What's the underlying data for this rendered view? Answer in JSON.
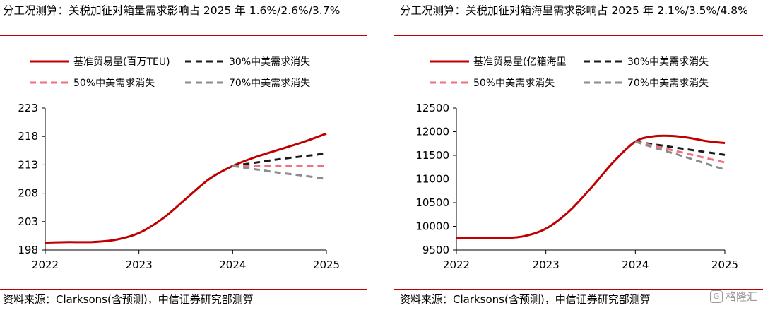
{
  "watermark": {
    "text": "格隆汇"
  },
  "colors": {
    "rule": "#c00000",
    "base": "#c00000",
    "s30": "#1a1a1a",
    "s50": "#f0707e",
    "s70": "#8c8c8c"
  },
  "panels": [
    {
      "title": "分工况测算：关税加征对箱量需求影响占 2025 年 1.6%/2.6%/3.7%",
      "source": "资料来源：Clarksons(含预测)，中信证券研究部测算"
    },
    {
      "title": "分工况测算：关税加征对箱海里需求影响占 2025 年 2.1%/3.5%/4.8%",
      "source": "资料来源：Clarksons(含预测)，中信证券研究部测算"
    }
  ],
  "chart_data": [
    {
      "type": "line",
      "x_ticks": [
        "2022",
        "2023",
        "2024",
        "2025"
      ],
      "y_ticks": [
        "198",
        "203",
        "208",
        "213",
        "218",
        "223"
      ],
      "xlim": [
        2022,
        2025
      ],
      "ylim": [
        198,
        223
      ],
      "grid": false,
      "legend_position": "top",
      "series": [
        {
          "name": "基准贸易量(百万TEU)",
          "style": "solid",
          "color": "#c00000",
          "points": [
            [
              2022,
              199.3
            ],
            [
              2022.25,
              199.4
            ],
            [
              2022.5,
              199.4
            ],
            [
              2022.75,
              199.8
            ],
            [
              2023,
              201.0
            ],
            [
              2023.25,
              203.5
            ],
            [
              2023.5,
              207.0
            ],
            [
              2023.75,
              210.5
            ],
            [
              2024,
              212.8
            ],
            [
              2024.25,
              214.4
            ],
            [
              2024.5,
              215.7
            ],
            [
              2024.75,
              217.0
            ],
            [
              2025,
              218.5
            ]
          ]
        },
        {
          "name": "30%中美需求消失",
          "style": "dashed",
          "color": "#1a1a1a",
          "points": [
            [
              2024,
              212.8
            ],
            [
              2024.25,
              213.4
            ],
            [
              2024.5,
              214.0
            ],
            [
              2024.75,
              214.5
            ],
            [
              2025,
              215.0
            ]
          ]
        },
        {
          "name": "50%中美需求消失",
          "style": "dashed",
          "color": "#f0707e",
          "points": [
            [
              2024,
              212.8
            ],
            [
              2024.5,
              212.8
            ],
            [
              2025,
              212.8
            ]
          ]
        },
        {
          "name": "70%中美需求消失",
          "style": "dashed",
          "color": "#8c8c8c",
          "points": [
            [
              2024,
              212.8
            ],
            [
              2024.25,
              212.2
            ],
            [
              2024.5,
              211.6
            ],
            [
              2024.75,
              211.1
            ],
            [
              2025,
              210.5
            ]
          ]
        }
      ]
    },
    {
      "type": "line",
      "x_ticks": [
        "2022",
        "2023",
        "2024",
        "2025"
      ],
      "y_ticks": [
        "9500",
        "10000",
        "10500",
        "11000",
        "11500",
        "12000",
        "12500"
      ],
      "xlim": [
        2022,
        2025
      ],
      "ylim": [
        9500,
        12500
      ],
      "grid": false,
      "legend_position": "top",
      "series": [
        {
          "name": "基准贸易量(亿箱海里",
          "style": "solid",
          "color": "#c00000",
          "points": [
            [
              2022,
              9750
            ],
            [
              2022.25,
              9760
            ],
            [
              2022.5,
              9750
            ],
            [
              2022.75,
              9790
            ],
            [
              2023,
              9950
            ],
            [
              2023.25,
              10300
            ],
            [
              2023.5,
              10800
            ],
            [
              2023.75,
              11350
            ],
            [
              2024,
              11790
            ],
            [
              2024.2,
              11900
            ],
            [
              2024.4,
              11910
            ],
            [
              2024.6,
              11870
            ],
            [
              2024.8,
              11800
            ],
            [
              2025,
              11760
            ]
          ]
        },
        {
          "name": "30%中美需求消失",
          "style": "dashed",
          "color": "#1a1a1a",
          "points": [
            [
              2024,
              11790
            ],
            [
              2024.25,
              11720
            ],
            [
              2024.5,
              11650
            ],
            [
              2024.75,
              11580
            ],
            [
              2025,
              11510
            ]
          ]
        },
        {
          "name": "50%中美需求消失",
          "style": "dashed",
          "color": "#f0707e",
          "points": [
            [
              2024,
              11790
            ],
            [
              2024.25,
              11680
            ],
            [
              2024.5,
              11570
            ],
            [
              2024.75,
              11460
            ],
            [
              2025,
              11350
            ]
          ]
        },
        {
          "name": "70%中美需求消失",
          "style": "dashed",
          "color": "#8c8c8c",
          "points": [
            [
              2024,
              11790
            ],
            [
              2024.25,
              11640
            ],
            [
              2024.5,
              11500
            ],
            [
              2024.75,
              11350
            ],
            [
              2025,
              11200
            ]
          ]
        }
      ]
    }
  ]
}
